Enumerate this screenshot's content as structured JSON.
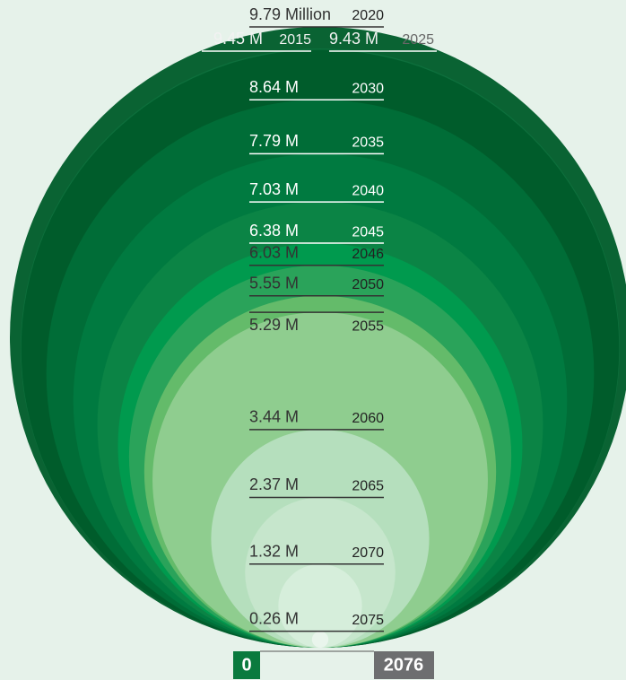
{
  "chart_data": {
    "type": "nested-circles",
    "categories": [
      "2015",
      "2020",
      "2025",
      "2030",
      "2035",
      "2040",
      "2045",
      "2046",
      "2050",
      "2055",
      "2060",
      "2065",
      "2070",
      "2075",
      "2076"
    ],
    "values": [
      9.45,
      9.79,
      9.43,
      8.64,
      7.79,
      7.03,
      6.38,
      6.03,
      5.55,
      5.29,
      3.44,
      2.37,
      1.32,
      0.26,
      0
    ],
    "value_labels": [
      "9.45 M",
      "9.79 Million",
      "9.43 M",
      "8.64 M",
      "7.79 M",
      "7.03 M",
      "6.38 M",
      "6.03 M",
      "5.55 M",
      "5.29 M",
      "3.44 M",
      "2.37 M",
      "1.32 M",
      "0.26 M",
      "0"
    ],
    "colors": [
      "#0d6f3c",
      "#0a6333",
      "#005c2b",
      "#006d37",
      "#007a40",
      "#0b8445",
      "#009a4e",
      "#2aa35a",
      "#64bb6a",
      "#8fcd8f",
      "#b5dfbd",
      "#c6e6cc",
      "#d6eedb",
      "#e9f5ec",
      "#0a7a3e"
    ]
  }
}
